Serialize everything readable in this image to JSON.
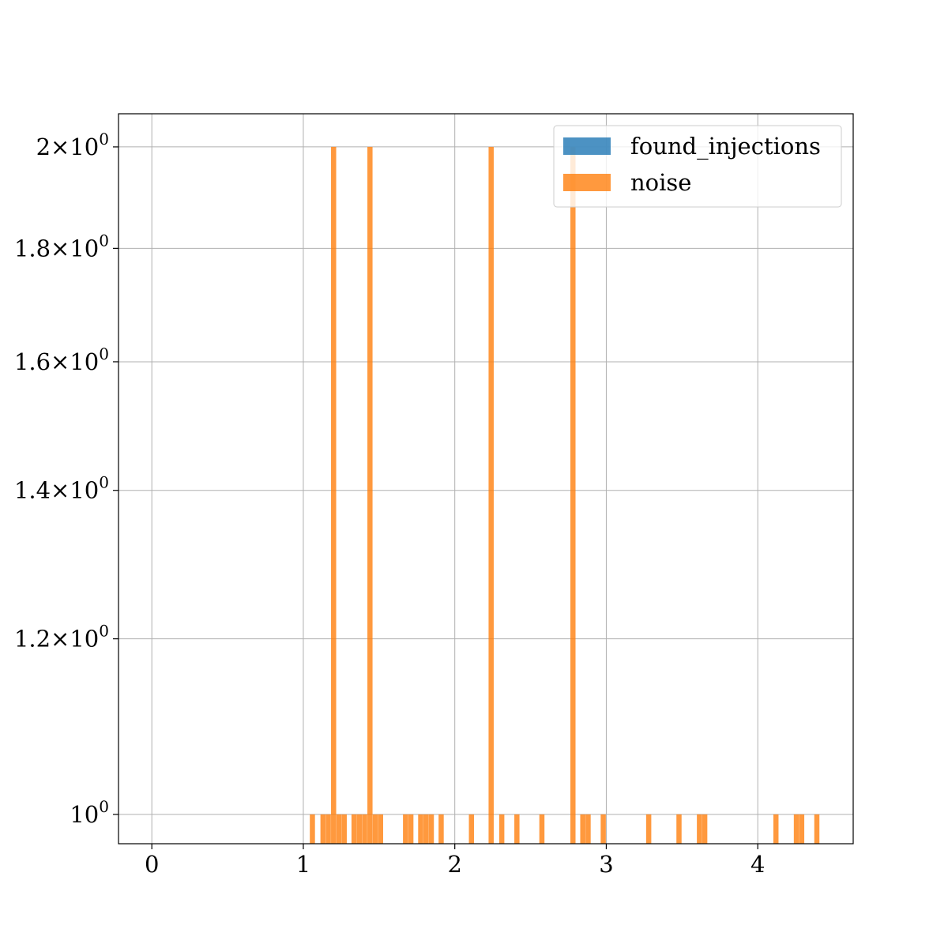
{
  "chart_data": {
    "type": "bar",
    "title": "",
    "xlabel": "",
    "ylabel": "",
    "xscale": "linear",
    "yscale": "log",
    "xlim": [
      -0.22,
      4.63
    ],
    "ylim": [
      0.97,
      2.07
    ],
    "grid": true,
    "legend_position": "top-right",
    "x_ticks": [
      {
        "value": 0,
        "label": "0"
      },
      {
        "value": 1,
        "label": "1"
      },
      {
        "value": 2,
        "label": "2"
      },
      {
        "value": 3,
        "label": "3"
      },
      {
        "value": 4,
        "label": "4"
      }
    ],
    "y_ticks": [
      {
        "value": 1.0,
        "mantissa": "",
        "base": "10",
        "exp": "0"
      },
      {
        "value": 1.2,
        "mantissa": "1.2",
        "base": "10",
        "exp": "0"
      },
      {
        "value": 1.4,
        "mantissa": "1.4",
        "base": "10",
        "exp": "0"
      },
      {
        "value": 1.6,
        "mantissa": "1.6",
        "base": "10",
        "exp": "0"
      },
      {
        "value": 1.8,
        "mantissa": "1.8",
        "base": "10",
        "exp": "0"
      },
      {
        "value": 2.0,
        "mantissa": "2",
        "base": "10",
        "exp": "0"
      }
    ],
    "bin_width": 0.034,
    "series": [
      {
        "name": "found_injections",
        "color": "#1f77b4",
        "opacity": 0.8,
        "bins": []
      },
      {
        "name": "noise",
        "color": "#ff7f0e",
        "opacity": 0.8,
        "bins": [
          {
            "x": 1.06,
            "count": 1
          },
          {
            "x": 1.13,
            "count": 1
          },
          {
            "x": 1.165,
            "count": 1
          },
          {
            "x": 1.2,
            "count": 2
          },
          {
            "x": 1.235,
            "count": 1
          },
          {
            "x": 1.27,
            "count": 1
          },
          {
            "x": 1.335,
            "count": 1
          },
          {
            "x": 1.37,
            "count": 1
          },
          {
            "x": 1.405,
            "count": 1
          },
          {
            "x": 1.44,
            "count": 2
          },
          {
            "x": 1.475,
            "count": 1
          },
          {
            "x": 1.51,
            "count": 1
          },
          {
            "x": 1.675,
            "count": 1
          },
          {
            "x": 1.71,
            "count": 1
          },
          {
            "x": 1.775,
            "count": 1
          },
          {
            "x": 1.81,
            "count": 1
          },
          {
            "x": 1.845,
            "count": 1
          },
          {
            "x": 1.91,
            "count": 1
          },
          {
            "x": 2.11,
            "count": 1
          },
          {
            "x": 2.24,
            "count": 2
          },
          {
            "x": 2.31,
            "count": 1
          },
          {
            "x": 2.41,
            "count": 1
          },
          {
            "x": 2.575,
            "count": 1
          },
          {
            "x": 2.78,
            "count": 2
          },
          {
            "x": 2.845,
            "count": 1
          },
          {
            "x": 2.88,
            "count": 1
          },
          {
            "x": 2.98,
            "count": 1
          },
          {
            "x": 3.28,
            "count": 1
          },
          {
            "x": 3.48,
            "count": 1
          },
          {
            "x": 3.615,
            "count": 1
          },
          {
            "x": 3.65,
            "count": 1
          },
          {
            "x": 4.12,
            "count": 1
          },
          {
            "x": 4.255,
            "count": 1
          },
          {
            "x": 4.29,
            "count": 1
          },
          {
            "x": 4.39,
            "count": 1
          }
        ]
      }
    ]
  }
}
